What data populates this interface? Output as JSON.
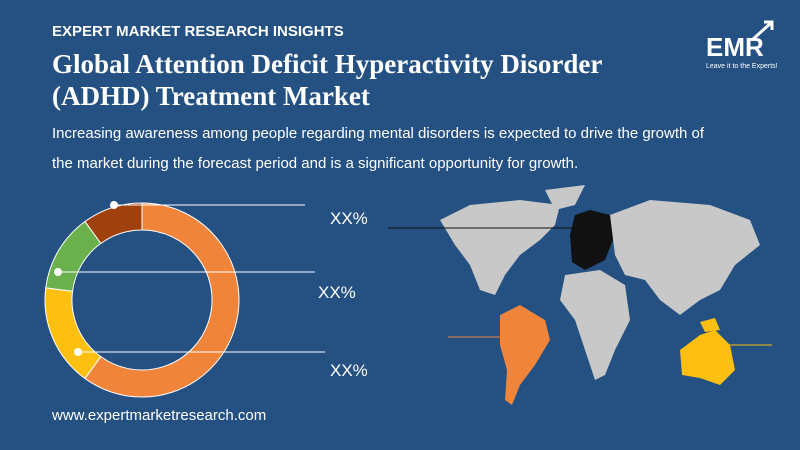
{
  "header": {
    "kicker": "EXPERT MARKET RESEARCH INSIGHTS",
    "title_lines": [
      "Global Attention Deficit Hyperactivity Disorder",
      "(ADHD) Treatment Market"
    ],
    "subtitle_lines": [
      "Increasing awareness among people regarding mental disorders is expected to drive the growth of",
      "the market during the forecast period and is a significant opportunity for growth."
    ]
  },
  "logo": {
    "text": "EMR",
    "tagline": "Leave it to the Experts!"
  },
  "chart_data": {
    "type": "donut",
    "values": [
      60,
      17,
      13,
      10
    ],
    "colors": [
      "#f0843a",
      "#fdc010",
      "#6ab04c",
      "#a0410d"
    ],
    "annotations": [
      "XX%",
      "XX%",
      "XX%"
    ]
  },
  "footer": "www.expertmarketresearch.com"
}
